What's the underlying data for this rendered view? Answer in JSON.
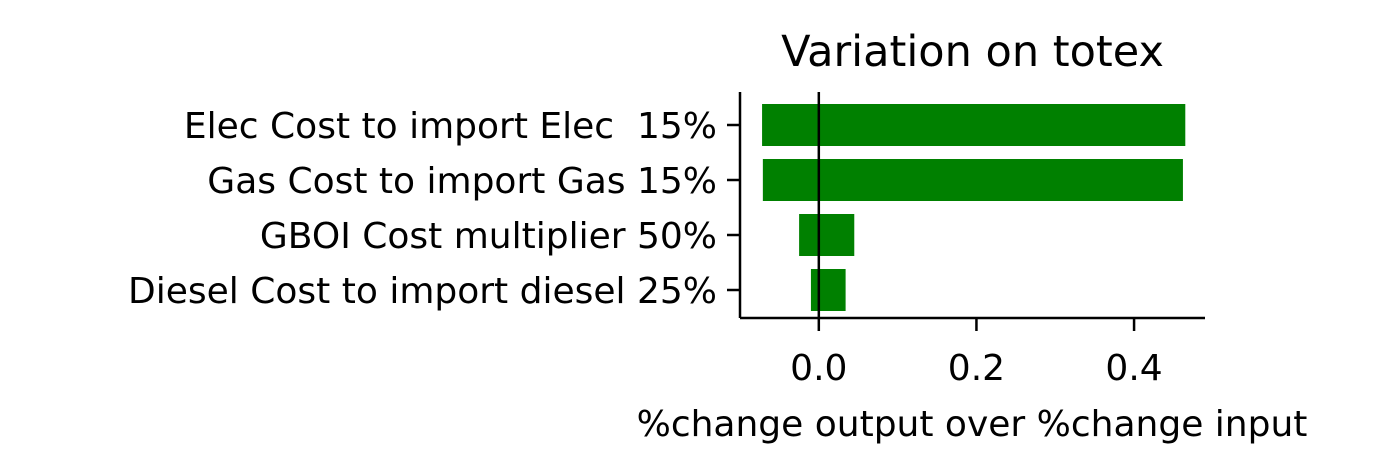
{
  "chart_data": {
    "type": "bar",
    "orientation": "horizontal",
    "title": "Variation on totex",
    "xlabel": "%change output over %change input",
    "ylabel": "",
    "xlim": [
      -0.1,
      0.49
    ],
    "xticks": [
      0.0,
      0.2,
      0.4
    ],
    "xtick_labels": [
      "0.0",
      "0.2",
      "0.4"
    ],
    "grid": false,
    "color": "#008000",
    "zero_line": true,
    "categories": [
      "Elec Cost to import Elec  15%",
      "Gas Cost to import Gas 15%",
      "GBOI Cost multiplier 50%",
      "Diesel Cost to import diesel 25%"
    ],
    "bars": [
      {
        "low": -0.072,
        "high": 0.465
      },
      {
        "low": -0.071,
        "high": 0.462
      },
      {
        "low": -0.025,
        "high": 0.045
      },
      {
        "low": -0.01,
        "high": 0.034
      }
    ]
  }
}
